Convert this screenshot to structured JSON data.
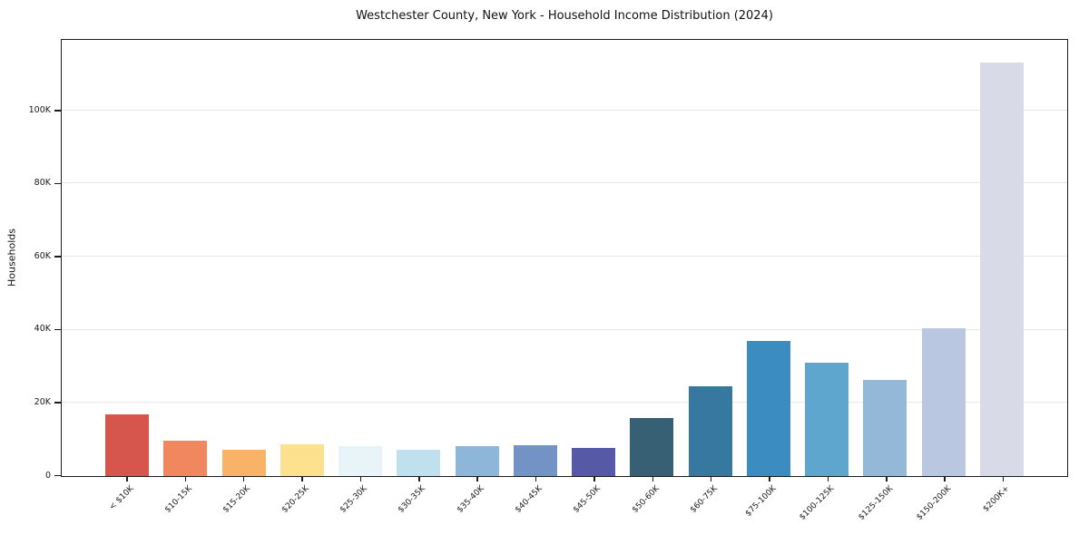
{
  "chart_data": {
    "type": "bar",
    "title": "Westchester County, New York - Household Income Distribution (2024)",
    "xlabel": "",
    "ylabel": "Households",
    "categories": [
      "< $10K",
      "$10-15K",
      "$15-20K",
      "$20-25K",
      "$25-30K",
      "$30-35K",
      "$35-40K",
      "$40-45K",
      "$45-50K",
      "$50-60K",
      "$60-75K",
      "$75-100K",
      "$100-125K",
      "$125-150K",
      "$150-200K",
      "$200K+"
    ],
    "values": [
      16800,
      9700,
      7200,
      8700,
      8200,
      7200,
      8100,
      8400,
      7700,
      15900,
      24500,
      36900,
      31000,
      26200,
      40300,
      113000
    ],
    "bar_colors": [
      "#d6564e",
      "#f0875f",
      "#f9b369",
      "#fde18e",
      "#e8f4f8",
      "#bfe0ec",
      "#8db6d9",
      "#7392c6",
      "#5659a5",
      "#386074",
      "#36789f",
      "#3a8cc1",
      "#5ea6cd",
      "#93b8d8",
      "#b9c8e0",
      "#d8dae8"
    ],
    "ylim": [
      0,
      119250
    ],
    "yticks": [
      {
        "value": 0,
        "label": "0"
      },
      {
        "value": 20000,
        "label": "20K"
      },
      {
        "value": 40000,
        "label": "40K"
      },
      {
        "value": 60000,
        "label": "60K"
      },
      {
        "value": 80000,
        "label": "80K"
      },
      {
        "value": 100000,
        "label": "100K"
      }
    ],
    "grid": "horizontal",
    "legend": "none",
    "grid_color": "#e8e8e8",
    "spine_color": "#1c1c1c",
    "text_color": "#111111",
    "background_color": "#ffffff"
  }
}
